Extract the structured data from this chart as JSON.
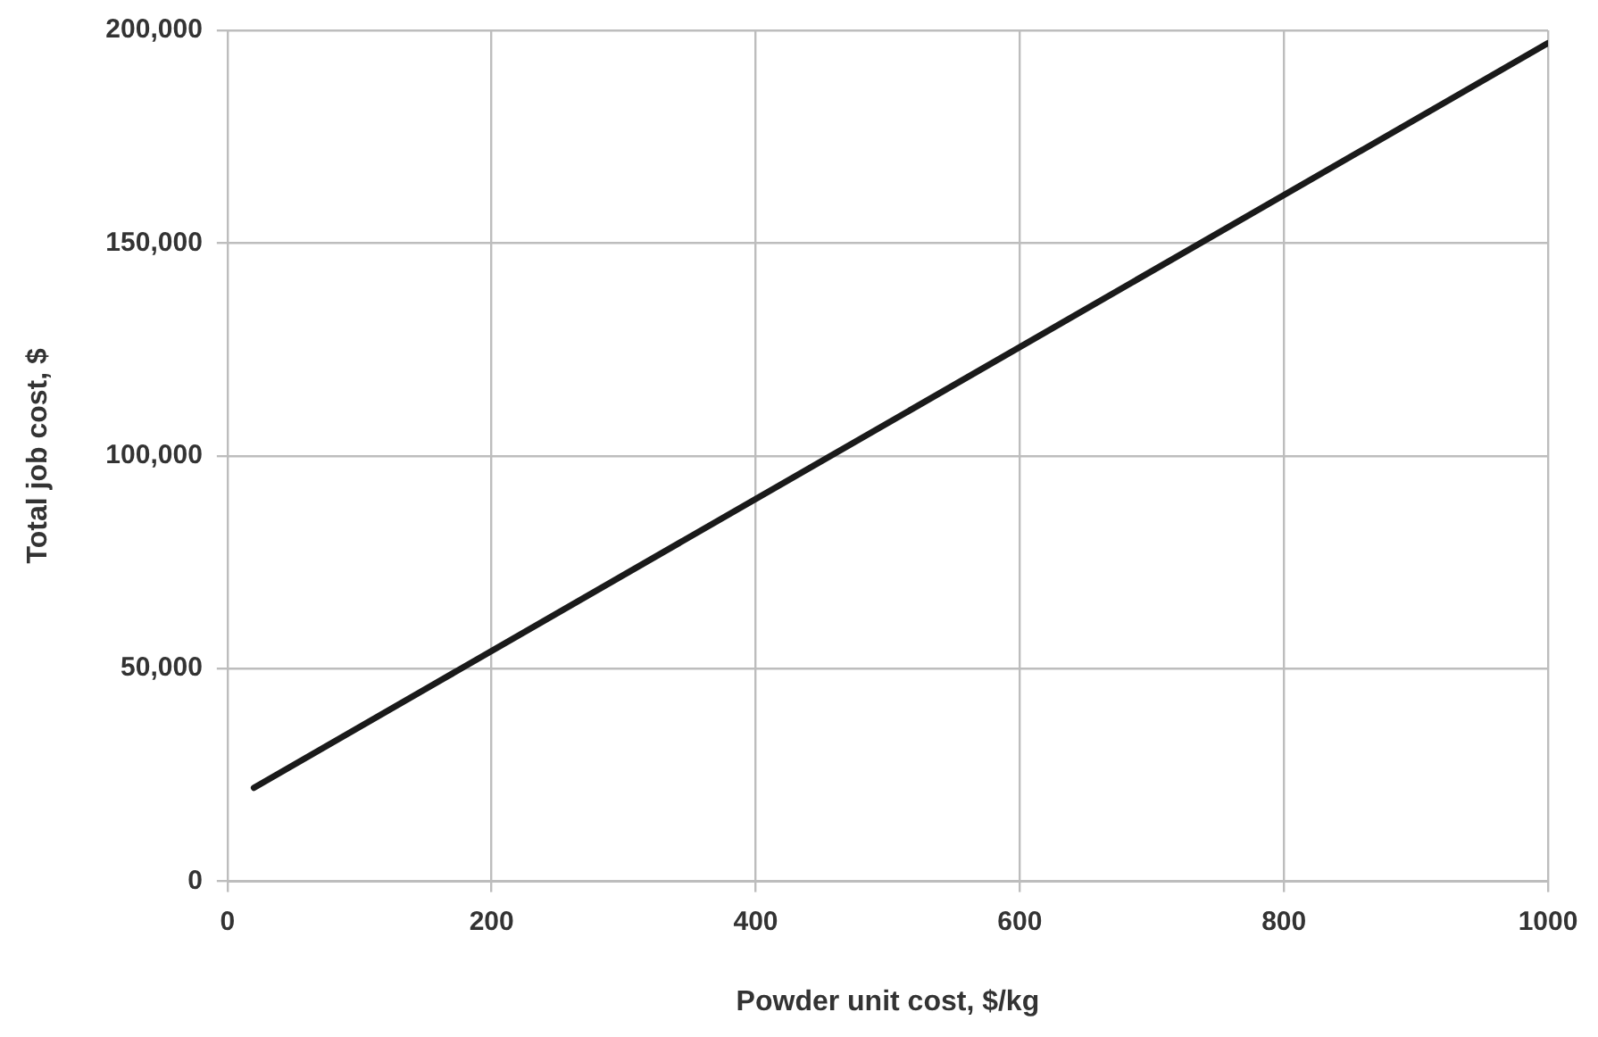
{
  "chart_data": {
    "type": "line",
    "xlabel": "Powder unit cost, $/kg",
    "ylabel": "Total job cost, $",
    "x": [
      20,
      1000
    ],
    "series": [
      {
        "color": "#1a1a1a",
        "values": [
          22000,
          197000
        ]
      }
    ],
    "xlim": [
      0,
      1000
    ],
    "xticks": [
      0,
      200,
      400,
      600,
      800,
      1000
    ],
    "ylim": [
      0,
      200000
    ],
    "yticks": [
      {
        "value": 0,
        "label": "0"
      },
      {
        "value": 50000,
        "label": "50,000"
      },
      {
        "value": 100000,
        "label": "100,000"
      },
      {
        "value": 150000,
        "label": "150,000"
      },
      {
        "value": 200000,
        "label": "200,000"
      }
    ],
    "grid": true,
    "legend": false,
    "marker": "none",
    "line_style": "solid"
  }
}
